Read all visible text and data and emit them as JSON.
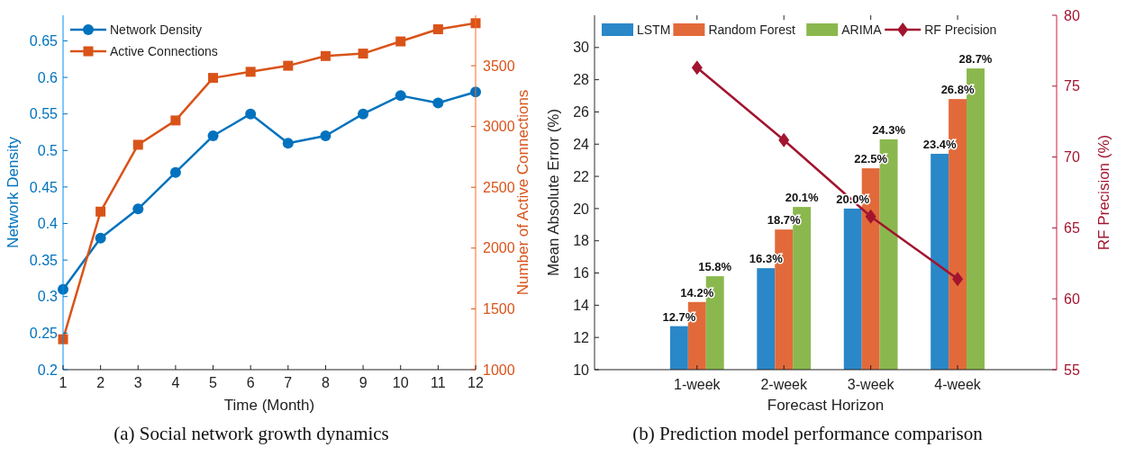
{
  "chart_data": [
    {
      "type": "line",
      "title": "(a) Social network growth dynamics",
      "xlabel": "Time (Month)",
      "ylabel": "Network Density",
      "y2label": "Number of Active Connections",
      "x": [
        1,
        2,
        3,
        4,
        5,
        6,
        7,
        8,
        9,
        10,
        11,
        12
      ],
      "xlim": [
        1,
        12
      ],
      "xticks": [
        1,
        2,
        3,
        4,
        5,
        6,
        7,
        8,
        9,
        10,
        11,
        12
      ],
      "ylim": [
        0.2,
        0.685
      ],
      "yticks": [
        0.2,
        0.25,
        0.3,
        0.35,
        0.4,
        0.45,
        0.5,
        0.55,
        0.6,
        0.65
      ],
      "y2lim": [
        1000,
        3915
      ],
      "y2ticks": [
        1000,
        1500,
        2000,
        2500,
        3000,
        3500
      ],
      "grid": false,
      "legend": "top left",
      "line_style": "solid",
      "series": [
        {
          "name": "Network Density",
          "color": "#0072bd",
          "marker": "circle",
          "values": [
            0.31,
            0.38,
            0.42,
            0.47,
            0.52,
            0.55,
            0.51,
            0.52,
            0.55,
            0.575,
            0.565,
            0.58
          ]
        },
        {
          "name": "Active Connections",
          "color": "#d95319",
          "marker": "square",
          "axis": "y2",
          "values": [
            1250,
            2300,
            2850,
            3050,
            3400,
            3450,
            3500,
            3580,
            3600,
            3700,
            3800,
            3850
          ]
        }
      ]
    },
    {
      "type": "bar",
      "title": "(b) Prediction model performance comparison",
      "xlabel": "Forecast Horizon",
      "ylabel": "Mean Absolute Error (%)",
      "y2label": "RF Precision (%)",
      "categories": [
        "1-week",
        "2-week",
        "3-week",
        "4-week"
      ],
      "ylim": [
        10,
        32
      ],
      "yticks": [
        10,
        12,
        14,
        16,
        18,
        20,
        22,
        24,
        26,
        28,
        30
      ],
      "y2lim": [
        55,
        80
      ],
      "y2ticks": [
        55,
        60,
        65,
        70,
        75,
        80
      ],
      "grid": false,
      "legend": "top left",
      "line_style": "solid",
      "series": [
        {
          "name": "LSTM",
          "color": "#2a87c8",
          "values": [
            12.7,
            16.3,
            20.0,
            23.4
          ],
          "value_labels": [
            "12.7%",
            "16.3%",
            "20.0%",
            "23.4%"
          ]
        },
        {
          "name": "Random Forest",
          "color": "#e26a3a",
          "values": [
            14.2,
            18.7,
            22.5,
            26.8
          ],
          "value_labels": [
            "14.2%",
            "18.7%",
            "22.5%",
            "26.8%"
          ]
        },
        {
          "name": "ARIMA",
          "color": "#8ab84e",
          "values": [
            15.8,
            20.1,
            24.3,
            28.7
          ],
          "value_labels": [
            "15.8%",
            "20.1%",
            "24.3%",
            "28.7%"
          ]
        },
        {
          "name": "RF Precision",
          "type": "line",
          "color": "#a2142f",
          "marker": "diamond",
          "axis": "y2",
          "values": [
            76.3,
            71.2,
            65.8,
            61.4
          ]
        }
      ]
    }
  ]
}
